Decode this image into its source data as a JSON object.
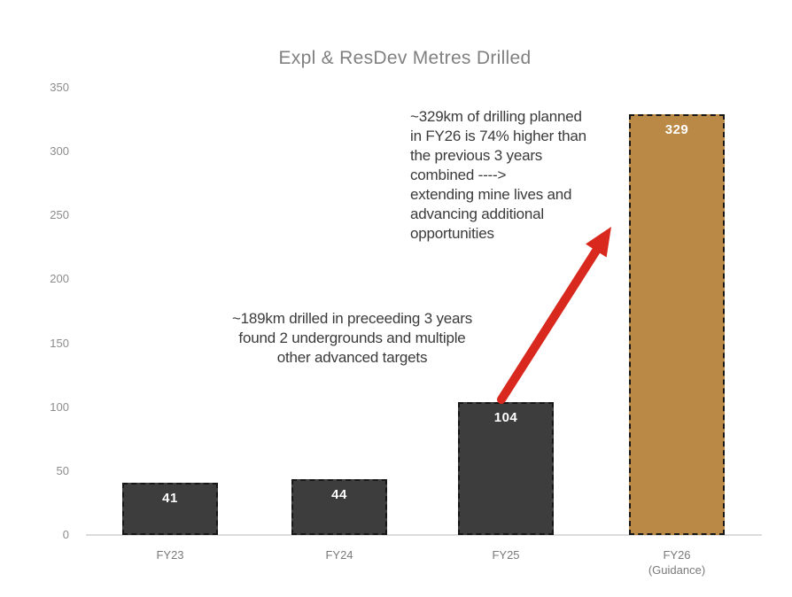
{
  "title": "Expl & ResDev Metres Drilled",
  "chart_data": {
    "type": "bar",
    "title": "Expl & ResDev Metres Drilled",
    "categories": [
      "FY23",
      "FY24",
      "FY25",
      "FY26\n(Guidance)"
    ],
    "values": [
      41,
      44,
      104,
      329
    ],
    "xlabel": "",
    "ylabel": "",
    "ylim": [
      0,
      350
    ],
    "yticks": [
      0,
      50,
      100,
      150,
      200,
      250,
      300,
      350
    ],
    "bar_colors": [
      "#3d3d3d",
      "#3d3d3d",
      "#3d3d3d",
      "#ba8946"
    ],
    "grid": false,
    "legend": false,
    "annotations": [
      "~329km of drilling planned in FY26 is 74% higher than the previous 3 years combined ----> extending mine lives and advancing additional opportunities",
      "~189km drilled in preceeding 3 years found 2 undergrounds and multiple other advanced targets"
    ]
  },
  "annotations": {
    "fy26_note": "~329km of drilling planned\nin FY26 is 74% higher than\nthe previous 3 years\ncombined ---->\nextending mine lives and\nadvancing additional\nopportunities",
    "history_note": "~189km drilled in preceeding 3 years\nfound 2 undergrounds and multiple\nother advanced targets"
  },
  "colors": {
    "bar_dark": "#3d3d3d",
    "bar_gold": "#ba8946",
    "bar_border": "#161616",
    "arrow_red": "#d9281e",
    "title_text": "#808080",
    "axis_text": "#8c8c8c",
    "annotation_text": "#3a3a3a",
    "axis_line": "#dcdcdc"
  }
}
